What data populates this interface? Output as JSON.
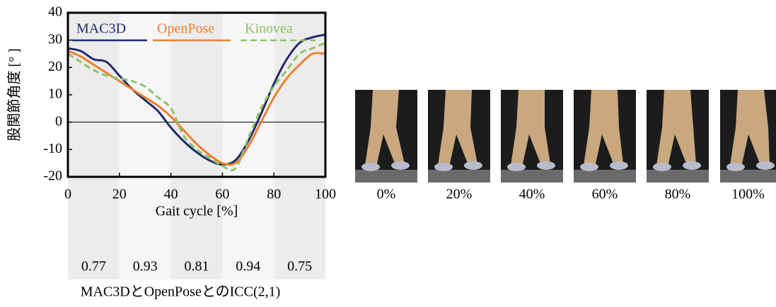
{
  "chart_data": {
    "type": "line",
    "ylabel": "股関節角度 [° ]",
    "xlabel": "Gait cycle [%]",
    "x": [
      0,
      5,
      10,
      15,
      20,
      25,
      30,
      35,
      40,
      45,
      50,
      55,
      60,
      65,
      70,
      75,
      80,
      85,
      90,
      95,
      100
    ],
    "series": [
      {
        "name": "MAC3D",
        "color": "#1f2a6b",
        "dash": false,
        "values": [
          27,
          26,
          23,
          22,
          17,
          12,
          8,
          4,
          -2,
          -7,
          -11,
          -14,
          -15.5,
          -14,
          -7,
          3,
          14,
          23,
          29,
          31,
          32
        ]
      },
      {
        "name": "OpenPose",
        "color": "#ef7f2f",
        "dash": false,
        "values": [
          26,
          24,
          21,
          18,
          15,
          12,
          9,
          6,
          2,
          -3,
          -8,
          -12,
          -15,
          -15,
          -9,
          0,
          9,
          16,
          21,
          25,
          25
        ]
      },
      {
        "name": "Kinovea",
        "color": "#8fc36a",
        "dash": true,
        "values": [
          25,
          22,
          19,
          17,
          16,
          15,
          13,
          9,
          5,
          -5,
          -10,
          -13,
          -16,
          -17,
          -6,
          5,
          13,
          19,
          25,
          27,
          29
        ]
      }
    ],
    "xlim": [
      0,
      100
    ],
    "xticks": [
      0,
      20,
      40,
      60,
      80,
      100
    ],
    "ylim": [
      -20,
      40
    ],
    "yticks": [
      -20,
      -10,
      0,
      10,
      20,
      30,
      40
    ],
    "icc": {
      "label": "MAC3DとOpenPoseとのICC(2,1)",
      "values": [
        0.77,
        0.93,
        0.81,
        0.94,
        0.75
      ]
    },
    "frames": [
      "0%",
      "20%",
      "40%",
      "60%",
      "80%",
      "100%"
    ]
  }
}
